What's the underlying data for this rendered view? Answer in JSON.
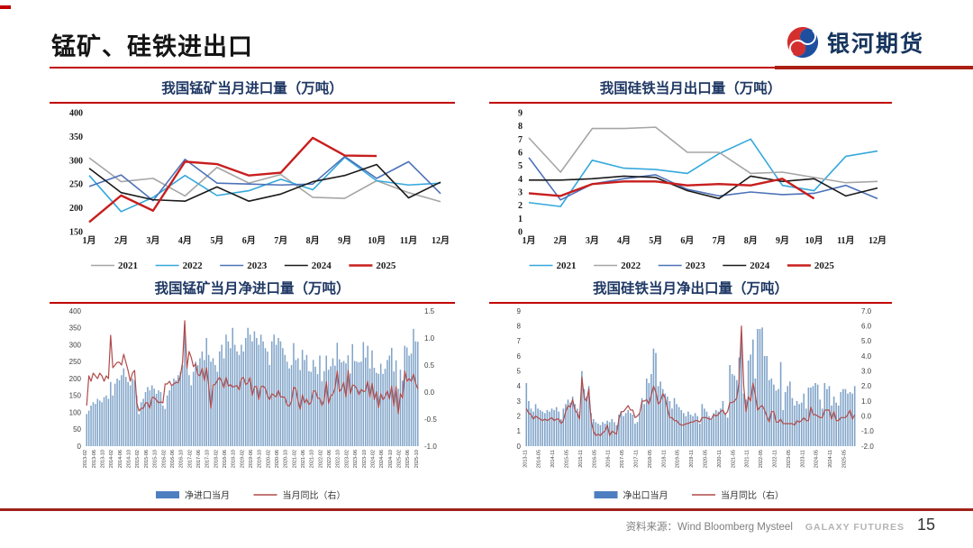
{
  "header": {
    "title": "锰矿、硅铁进出口",
    "logo_text": "银河期货",
    "accent_color": "#c00000",
    "title_color": "#141414",
    "chart_title_color": "#1f3864"
  },
  "footer": {
    "source_label": "资料来源：Wind Bloomberg Mysteel",
    "brand": "GALAXY FUTURES",
    "page_number": "15"
  },
  "chart_data": [
    {
      "id": "mn-monthly-import",
      "type": "line",
      "title": "我国锰矿当月进口量（万吨）",
      "categories": [
        "1月",
        "2月",
        "3月",
        "4月",
        "5月",
        "6月",
        "7月",
        "8月",
        "9月",
        "10月",
        "11月",
        "12月"
      ],
      "ylim": [
        150,
        400
      ],
      "yticks": [
        "400",
        "350",
        "300",
        "250",
        "200",
        "150"
      ],
      "grid": false,
      "legend_position": "bottom",
      "series": [
        {
          "name": "2021",
          "color": "#a6a6a6",
          "width": 1.6,
          "values": [
            305,
            255,
            262,
            225,
            285,
            252,
            270,
            222,
            220,
            257,
            232,
            213
          ]
        },
        {
          "name": "2022",
          "color": "#35a8dc",
          "width": 1.6,
          "values": [
            268,
            192,
            222,
            268,
            226,
            236,
            260,
            238,
            306,
            257,
            248,
            252
          ]
        },
        {
          "name": "2023",
          "color": "#4d72b8",
          "width": 1.6,
          "values": [
            245,
            269,
            215,
            302,
            252,
            250,
            248,
            250,
            308,
            262,
            297,
            230
          ]
        },
        {
          "name": "2024",
          "color": "#1a1a1a",
          "width": 1.6,
          "values": [
            283,
            232,
            217,
            214,
            244,
            214,
            229,
            255,
            268,
            291,
            221,
            254
          ]
        },
        {
          "name": "2025",
          "color": "#c81e1e",
          "width": 2.4,
          "values": [
            170,
            226,
            194,
            297,
            292,
            268,
            274,
            347,
            310,
            309
          ]
        }
      ]
    },
    {
      "id": "fesi-monthly-export",
      "type": "line",
      "title": "我国硅铁当月出口量（万吨）",
      "categories": [
        "1月",
        "2月",
        "3月",
        "4月",
        "5月",
        "6月",
        "7月",
        "8月",
        "9月",
        "10月",
        "11月",
        "12月"
      ],
      "ylim": [
        0,
        9
      ],
      "yticks": [
        "9",
        "8",
        "7",
        "6",
        "5",
        "4",
        "3",
        "2",
        "1",
        "0"
      ],
      "grid": false,
      "legend_position": "bottom",
      "series": [
        {
          "name": "2021",
          "color": "#35a8dc",
          "width": 1.6,
          "values": [
            2.2,
            1.9,
            5.4,
            4.8,
            4.7,
            4.4,
            5.9,
            7.0,
            3.5,
            3.1,
            5.7,
            6.1
          ]
        },
        {
          "name": "2022",
          "color": "#a6a6a6",
          "width": 1.6,
          "values": [
            7.1,
            4.5,
            7.8,
            7.8,
            7.9,
            6.0,
            6.0,
            4.4,
            4.5,
            4.1,
            3.7,
            3.8
          ]
        },
        {
          "name": "2023",
          "color": "#4d72b8",
          "width": 1.6,
          "values": [
            5.6,
            2.4,
            3.6,
            4.0,
            4.3,
            3.2,
            2.7,
            3.0,
            2.8,
            2.9,
            3.5,
            2.5
          ]
        },
        {
          "name": "2024",
          "color": "#1a1a1a",
          "width": 1.6,
          "values": [
            3.9,
            3.9,
            4.0,
            4.2,
            4.1,
            3.1,
            2.5,
            4.2,
            3.8,
            4.0,
            2.7,
            3.3
          ]
        },
        {
          "name": "2025",
          "color": "#c81e1e",
          "width": 2.4,
          "values": [
            2.9,
            2.7,
            3.6,
            3.8,
            3.8,
            3.5,
            3.6,
            3.5,
            4.0,
            2.5
          ]
        }
      ]
    },
    {
      "id": "mn-monthly-net-import",
      "type": "bar-line",
      "title": "我国锰矿当月净进口量（万吨）",
      "x_start": "2013-02",
      "label_step": 4,
      "x_labels": [
        "2013-02",
        "2013-06",
        "2013-10",
        "2014-02",
        "2014-06",
        "2014-10",
        "2015-02",
        "2015-06",
        "2015-10",
        "2016-02",
        "2016-06",
        "2016-10",
        "2017-02",
        "2017-06",
        "2017-10",
        "2018-02",
        "2018-06",
        "2018-10",
        "2019-02",
        "2019-06",
        "2019-10",
        "2020-02",
        "2020-06",
        "2020-10",
        "2021-02",
        "2021-06",
        "2021-10",
        "2022-02",
        "2022-06",
        "2022-10",
        "2023-02",
        "2023-06",
        "2023-10",
        "2024-02",
        "2024-06",
        "2024-10",
        "2025-02",
        "2025-06",
        "2025-10"
      ],
      "left_ylim": [
        0,
        400
      ],
      "left_yticks": [
        "400",
        "350",
        "300",
        "250",
        "200",
        "150",
        "100",
        "50",
        "0"
      ],
      "right_ylim": [
        -1.0,
        1.5
      ],
      "right_yticks": [
        "1.5",
        "1.0",
        "0.5",
        "0.0",
        "-0.5",
        "-1.0"
      ],
      "bar_series": {
        "name": "净进口当月",
        "color": "#7fa3c8",
        "values": [
          95,
          105,
          120,
          130,
          125,
          140,
          135,
          130,
          145,
          150,
          140,
          190,
          150,
          185,
          200,
          195,
          210,
          230,
          205,
          190,
          180,
          200,
          195,
          150,
          95,
          130,
          140,
          160,
          175,
          165,
          180,
          170,
          155,
          165,
          160,
          120,
          110,
          150,
          165,
          180,
          200,
          195,
          210,
          220,
          240,
          360,
          230,
          210,
          180,
          220,
          250,
          240,
          260,
          280,
          255,
          320,
          270,
          250,
          260,
          240,
          220,
          280,
          300,
          260,
          330,
          310,
          290,
          350,
          300,
          280,
          270,
          300,
          280,
          320,
          350,
          330,
          310,
          340,
          320,
          300,
          330,
          310,
          290,
          280,
          240,
          310,
          330,
          300,
          320,
          310,
          290,
          270,
          250,
          230,
          240,
          305,
          255,
          260,
          225,
          285,
          255,
          270,
          222,
          220,
          255,
          235,
          213,
          268,
          192,
          222,
          268,
          226,
          236,
          260,
          238,
          306,
          257,
          248,
          252,
          245,
          269,
          215,
          302,
          252,
          250,
          248,
          250,
          308,
          262,
          297,
          230,
          283,
          232,
          217,
          214,
          244,
          214,
          229,
          255,
          268,
          291,
          221,
          254,
          170,
          226,
          194,
          297,
          292,
          268,
          274,
          347,
          310,
          309
        ]
      },
      "line_series": {
        "name": "当月同比（右）",
        "color": "#b04a4a",
        "values": [
          -0.25,
          0.3,
          0.2,
          0.35,
          0.3,
          0.25,
          0.35,
          0.3,
          0.2,
          0.3,
          0.25,
          1.05,
          0.45,
          0.5,
          0.55,
          0.55,
          0.5,
          0.7,
          0.55,
          0.4,
          0.2,
          0.35,
          0.4,
          -0.2,
          -0.35,
          -0.3,
          -0.3,
          -0.2,
          -0.2,
          -0.3,
          -0.1,
          -0.1,
          -0.15,
          -0.2,
          -0.18,
          -0.2,
          0.15,
          0.15,
          0.2,
          0.12,
          0.15,
          0.18,
          0.17,
          0.3,
          0.55,
          1.32,
          0.44,
          0.75,
          0.64,
          0.47,
          0.52,
          0.33,
          0.3,
          0.44,
          0.21,
          0.45,
          0.12,
          -0.3,
          0.13,
          0.14,
          0.22,
          0.27,
          0.2,
          0.08,
          0.27,
          0.11,
          0.14,
          0.09,
          0.11,
          0.12,
          0.04,
          0.25,
          0.27,
          0.14,
          0.17,
          0.27,
          -0.06,
          0.1,
          0.1,
          -0.14,
          0.1,
          0.11,
          0.07,
          -0.07,
          -0.14,
          -0.03,
          -0.06,
          -0.09,
          0.03,
          -0.09,
          -0.09,
          -0.1,
          -0.24,
          -0.26,
          -0.17,
          0.09,
          0.06,
          -0.16,
          -0.32,
          -0.05,
          -0.2,
          -0.13,
          -0.23,
          -0.19,
          0.02,
          0.02,
          -0.11,
          -0.12,
          -0.25,
          -0.15,
          0.19,
          -0.21,
          -0.07,
          -0.04,
          0.07,
          0.39,
          0.01,
          0.06,
          0.18,
          -0.09,
          0.4,
          -0.03,
          0.13,
          0.12,
          0.06,
          -0.05,
          0.05,
          0.01,
          0.02,
          0.2,
          -0.09,
          0.16,
          -0.14,
          0.01,
          -0.29,
          -0.03,
          -0.14,
          -0.08,
          0.02,
          -0.13,
          0.11,
          -0.26,
          0.1,
          -0.4,
          -0.03,
          -0.11,
          0.39,
          0.2,
          0.25,
          0.2,
          0.33,
          0.16,
          0.06
        ]
      }
    },
    {
      "id": "fesi-monthly-net-export",
      "type": "bar-line",
      "title": "我国硅铁当月净出口量（万吨）",
      "x_start": "2013-11",
      "label_step": 6,
      "x_labels": [
        "2013-11",
        "2014-05",
        "2014-11",
        "2015-05",
        "2015-11",
        "2016-05",
        "2016-11",
        "2017-05",
        "2017-11",
        "2018-05",
        "2018-11",
        "2019-05",
        "2019-11",
        "2020-05",
        "2020-11",
        "2021-05",
        "2021-11",
        "2022-05",
        "2022-11",
        "2023-05",
        "2023-11",
        "2024-05",
        "2024-11",
        "2025-05"
      ],
      "left_ylim": [
        0,
        9
      ],
      "left_yticks": [
        "9",
        "8",
        "7",
        "6",
        "5",
        "4",
        "3",
        "2",
        "1",
        "0"
      ],
      "right_ylim": [
        -2.0,
        7.0
      ],
      "right_yticks": [
        "7.0",
        "6.0",
        "5.0",
        "4.0",
        "3.0",
        "2.0",
        "1.0",
        "0.0",
        "-1.0",
        "-2.0"
      ],
      "bar_series": {
        "name": "净出口当月",
        "color": "#7fa3c8",
        "values": [
          4.2,
          3.0,
          2.5,
          2.3,
          2.8,
          2.5,
          2.4,
          2.3,
          2.2,
          2.4,
          2.3,
          2.5,
          2.4,
          2.6,
          2.3,
          1.8,
          2.5,
          2.8,
          3.1,
          2.9,
          3.3,
          2.8,
          2.5,
          2.3,
          5.0,
          3.8,
          3.3,
          4.0,
          2.2,
          1.8,
          1.6,
          1.5,
          1.4,
          1.6,
          1.5,
          1.7,
          1.6,
          1.8,
          1.6,
          1.4,
          2.1,
          2.3,
          2.0,
          2.2,
          2.4,
          2.2,
          2.1,
          1.5,
          1.6,
          2.2,
          3.2,
          2.8,
          4.5,
          4.2,
          4.8,
          6.5,
          6.2,
          4.0,
          4.3,
          3.8,
          3.5,
          3.3,
          3.0,
          2.5,
          3.2,
          2.8,
          2.6,
          2.4,
          2.2,
          2.0,
          2.3,
          2.1,
          2.0,
          2.2,
          2.0,
          1.5,
          2.8,
          2.5,
          2.3,
          2.0,
          1.8,
          2.2,
          2.4,
          2.3,
          2.5,
          3.0,
          2.2,
          1.9,
          5.4,
          4.8,
          4.7,
          4.4,
          5.9,
          7.0,
          3.5,
          3.1,
          5.7,
          6.1,
          7.1,
          4.5,
          7.8,
          7.8,
          7.9,
          6.0,
          6.0,
          4.4,
          4.5,
          4.1,
          3.7,
          3.8,
          5.6,
          2.4,
          3.6,
          4.0,
          4.3,
          3.2,
          2.7,
          3.0,
          2.8,
          2.9,
          3.5,
          2.5,
          3.9,
          3.9,
          4.0,
          4.2,
          4.1,
          3.1,
          2.5,
          4.2,
          3.8,
          4.0,
          2.7,
          3.3,
          2.9,
          2.7,
          3.6,
          3.8,
          3.8,
          3.5,
          3.6,
          3.5,
          4.0
        ]
      },
      "line_series": {
        "name": "当月同比（右）",
        "color": "#b04a4a",
        "values": [
          0.5,
          0.2,
          0.1,
          -0.2,
          0.0,
          -0.1,
          -0.2,
          -0.3,
          -0.2,
          -0.3,
          -0.2,
          -0.1,
          -0.3,
          -0.2,
          -0.2,
          -0.5,
          -0.3,
          0.3,
          0.7,
          0.6,
          1.1,
          0.4,
          0.2,
          -0.2,
          2.6,
          1.2,
          1.0,
          1.8,
          -0.3,
          -1.0,
          -1.3,
          -1.2,
          -1.3,
          -1.1,
          -1.0,
          -0.6,
          -1.3,
          -1.0,
          -1.1,
          -1.2,
          -0.2,
          0.3,
          0.3,
          0.5,
          0.7,
          0.4,
          0.4,
          -0.1,
          0.0,
          0.2,
          1.0,
          1.0,
          1.1,
          0.8,
          1.4,
          2.0,
          1.6,
          0.8,
          1.0,
          1.5,
          1.2,
          0.5,
          -0.1,
          -0.1,
          -0.3,
          -0.3,
          -0.5,
          -0.6,
          -0.6,
          -0.5,
          -0.5,
          -0.4,
          -0.4,
          -0.3,
          -0.3,
          -0.4,
          -0.1,
          -0.1,
          -0.1,
          -0.2,
          -0.2,
          0.1,
          0.0,
          0.1,
          0.3,
          0.4,
          0.1,
          0.3,
          0.9,
          0.9,
          1.0,
          1.2,
          2.3,
          6.0,
          2.0,
          0.3,
          1.3,
          1.0,
          2.2,
          1.4,
          0.4,
          0.6,
          0.7,
          0.4,
          0.0,
          -0.4,
          0.3,
          0.3,
          -0.4,
          -0.4,
          -0.2,
          -0.5,
          -0.5,
          -0.5,
          -0.5,
          -0.5,
          -0.6,
          -0.3,
          -0.4,
          -0.3,
          -0.1,
          -0.3,
          -0.3,
          0.6,
          0.1,
          0.1,
          0.0,
          -0.1,
          -0.1,
          0.4,
          0.4,
          0.4,
          -0.2,
          0.3,
          -0.3,
          -0.3,
          -0.1,
          -0.1,
          -0.1,
          0.1,
          0.4,
          -0.2,
          0.1
        ]
      }
    }
  ]
}
